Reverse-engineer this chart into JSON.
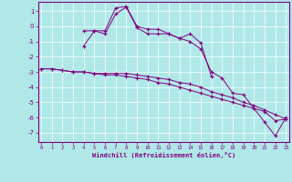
{
  "xlabel": "Windchill (Refroidissement éolien,°C)",
  "background_color": "#b0e8e8",
  "grid_color": "#ffffff",
  "line_color": "#800080",
  "x_ticks": [
    0,
    1,
    2,
    3,
    4,
    5,
    6,
    7,
    8,
    9,
    10,
    11,
    12,
    13,
    14,
    15,
    16,
    17,
    18,
    19,
    20,
    21,
    22,
    23
  ],
  "y_ticks": [
    1,
    0,
    -1,
    -2,
    -3,
    -4,
    -5,
    -6,
    -7
  ],
  "ylim": [
    -7.6,
    1.6
  ],
  "xlim": [
    -0.3,
    23.3
  ],
  "series": [
    [
      null,
      null,
      null,
      null,
      -1.3,
      -0.3,
      -0.3,
      1.2,
      1.3,
      0.0,
      -0.2,
      -0.2,
      -0.5,
      -0.8,
      -0.5,
      -1.1,
      -3.3,
      null,
      null,
      null,
      null,
      null,
      null,
      null
    ],
    [
      null,
      null,
      null,
      null,
      -0.3,
      -0.3,
      -0.5,
      0.8,
      1.25,
      -0.1,
      -0.5,
      -0.5,
      -0.5,
      -0.8,
      -1.0,
      -1.5,
      -3.0,
      -3.4,
      -4.4,
      -4.5,
      -5.4,
      -6.3,
      -7.2,
      -6.0
    ],
    [
      -2.8,
      -2.8,
      -2.9,
      -3.0,
      -3.0,
      -3.1,
      -3.1,
      -3.1,
      -3.1,
      -3.2,
      -3.3,
      -3.4,
      -3.5,
      -3.7,
      -3.8,
      -4.0,
      -4.3,
      -4.5,
      -4.7,
      -5.0,
      -5.2,
      -5.5,
      -5.8,
      -6.1
    ],
    [
      -2.8,
      -2.8,
      -2.9,
      -3.0,
      -3.0,
      -3.1,
      -3.2,
      -3.2,
      -3.3,
      -3.4,
      -3.5,
      -3.7,
      -3.8,
      -4.0,
      -4.2,
      -4.4,
      -4.6,
      -4.8,
      -5.0,
      -5.2,
      -5.4,
      -5.6,
      -6.2,
      -6.1
    ]
  ]
}
